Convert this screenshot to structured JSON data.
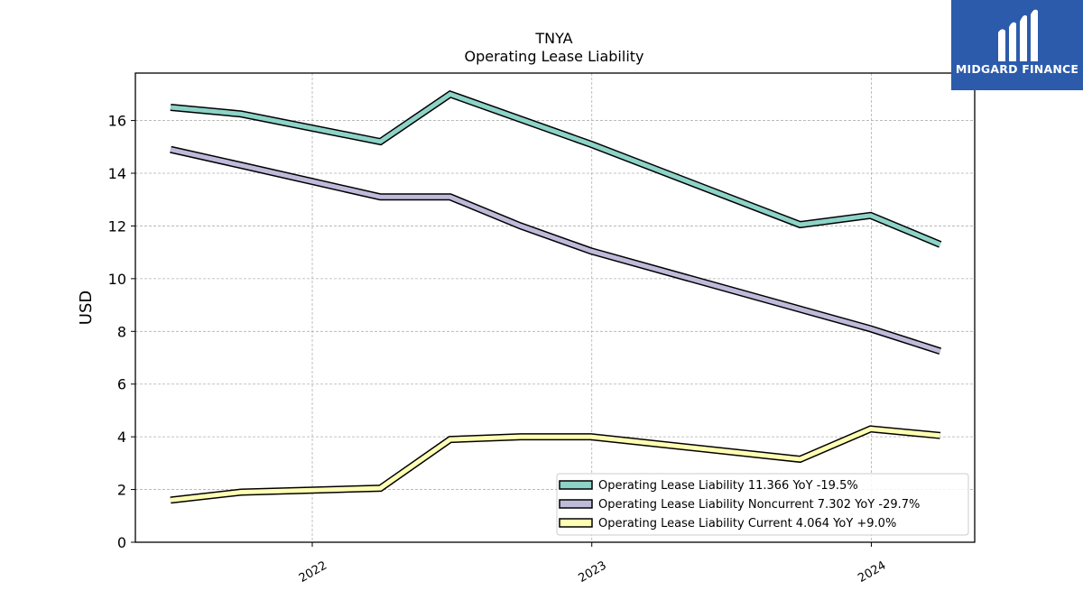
{
  "chart_data": {
    "type": "line",
    "title": "TNYA",
    "subtitle": "Operating Lease Liability",
    "xlabel": "",
    "ylabel": "USD",
    "x": [
      "2021-06-30",
      "2021-09-30",
      "2021-12-31",
      "2022-03-31",
      "2022-06-30",
      "2022-09-30",
      "2022-12-31",
      "2023-03-31",
      "2023-06-30",
      "2023-09-30",
      "2023-12-31",
      "2024-03-31"
    ],
    "xlim": [
      "2021-05-15",
      "2024-05-15"
    ],
    "ylim": [
      0,
      17.8
    ],
    "xticks": [
      {
        "date": "2022-01-01",
        "label": "2022"
      },
      {
        "date": "2023-01-01",
        "label": "2023"
      },
      {
        "date": "2024-01-01",
        "label": "2024"
      }
    ],
    "yticks": [
      0,
      2,
      4,
      6,
      8,
      10,
      12,
      14,
      16
    ],
    "grid": true,
    "legend_position": "lower-right",
    "series": [
      {
        "name": "Operating Lease Liability  11.366 YoY -19.5%",
        "color": "#8dd3c7",
        "values": [
          16.5,
          16.25,
          null,
          15.2,
          17.0,
          null,
          15.1,
          null,
          null,
          12.05,
          12.4,
          11.3
        ]
      },
      {
        "name": "Operating Lease Liability Noncurrent  7.302 YoY -29.7%",
        "color": "#bebada",
        "values": [
          14.9,
          14.3,
          null,
          13.1,
          13.1,
          12.0,
          11.05,
          null,
          null,
          null,
          8.1,
          7.25
        ]
      },
      {
        "name": "Operating Lease Liability Current  4.064 YoY +9.0%",
        "color": "#ffffb3",
        "values": [
          1.6,
          1.9,
          null,
          2.05,
          3.9,
          4.0,
          4.0,
          null,
          null,
          3.15,
          4.3,
          4.05
        ]
      }
    ]
  },
  "logo": {
    "text": "MIDGARD FINANCE"
  }
}
